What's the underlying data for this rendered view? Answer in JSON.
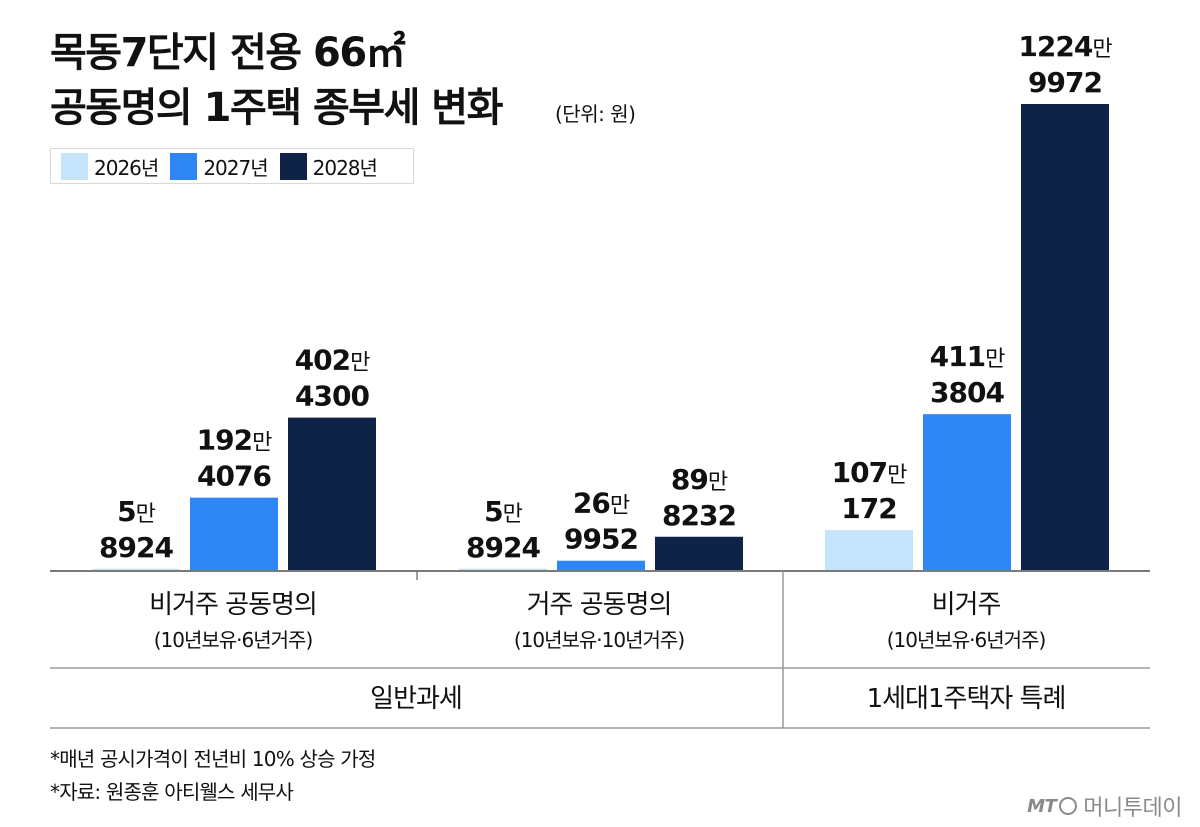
{
  "title_line1": "목동7단지 전용 66㎡",
  "title_line2": "공동명의 1주택 종부세 변화",
  "unit_note": "(단위: 원)",
  "colors": {
    "2026": "#c5e3fa",
    "2027": "#2e86f5",
    "2028": "#0f2347",
    "axis": "#7a7a7a",
    "divider": "#9a9a9a"
  },
  "legend": [
    {
      "label": "2026년",
      "color": "#c5e3fa"
    },
    {
      "label": "2027년",
      "color": "#2e86f5"
    },
    {
      "label": "2028년",
      "color": "#0f2347"
    }
  ],
  "chart_data": {
    "type": "bar",
    "title": "목동7단지 전용 66㎡ 공동명의 1주택 종부세 변화",
    "ylabel": "",
    "xlabel": "",
    "unit": "원",
    "ylim": [
      0,
      12249972
    ],
    "categories": [
      "비거주 공동명의 (10년보유·6년거주)",
      "거주 공동명의 (10년보유·10년거주)",
      "비거주 (10년보유·6년거주)"
    ],
    "series": [
      {
        "name": "2026년",
        "values": [
          58924,
          58924,
          1070172
        ],
        "labels_top": [
          "5",
          "5",
          "107"
        ],
        "labels_bottom": [
          "8924",
          "8924",
          "172"
        ]
      },
      {
        "name": "2027년",
        "values": [
          1924076,
          269952,
          4113804
        ],
        "labels_top": [
          "192",
          "26",
          "411"
        ],
        "labels_bottom": [
          "4076",
          "9952",
          "3804"
        ]
      },
      {
        "name": "2028년",
        "values": [
          4024300,
          898232,
          12249972
        ],
        "labels_top": [
          "402",
          "89",
          "1224"
        ],
        "labels_bottom": [
          "4300",
          "8232",
          "9972"
        ]
      }
    ],
    "man_suffix": "만",
    "category_main": [
      "비거주 공동명의",
      "거주 공동명의",
      "비거주"
    ],
    "category_sub": [
      "(10년보유·6년거주)",
      "(10년보유·10년거주)",
      "(10년보유·6년거주)"
    ],
    "groups": [
      {
        "label": "일반과세",
        "span": [
          0,
          1
        ]
      },
      {
        "label": "1세대1주택자 특례",
        "span": [
          2,
          2
        ]
      }
    ],
    "legend_position": "top-left",
    "grid": false
  },
  "notes": [
    "*매년 공시가격이 전년비 10% 상승 가정",
    "*자료: 원종훈 아티웰스 세무사"
  ],
  "logo": {
    "mt": "MT",
    "text": "머니투데이"
  }
}
